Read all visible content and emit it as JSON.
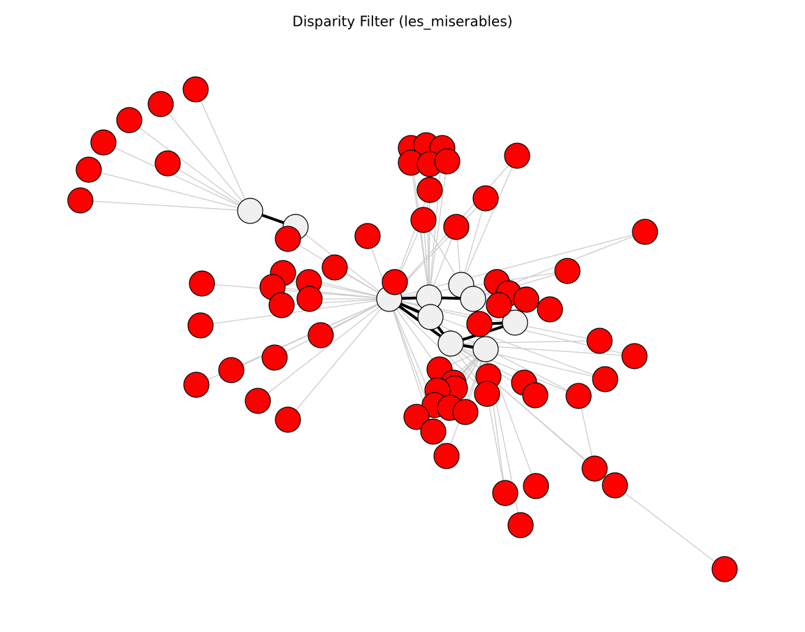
{
  "title": "Disparity Filter (les_miserables)"
}
